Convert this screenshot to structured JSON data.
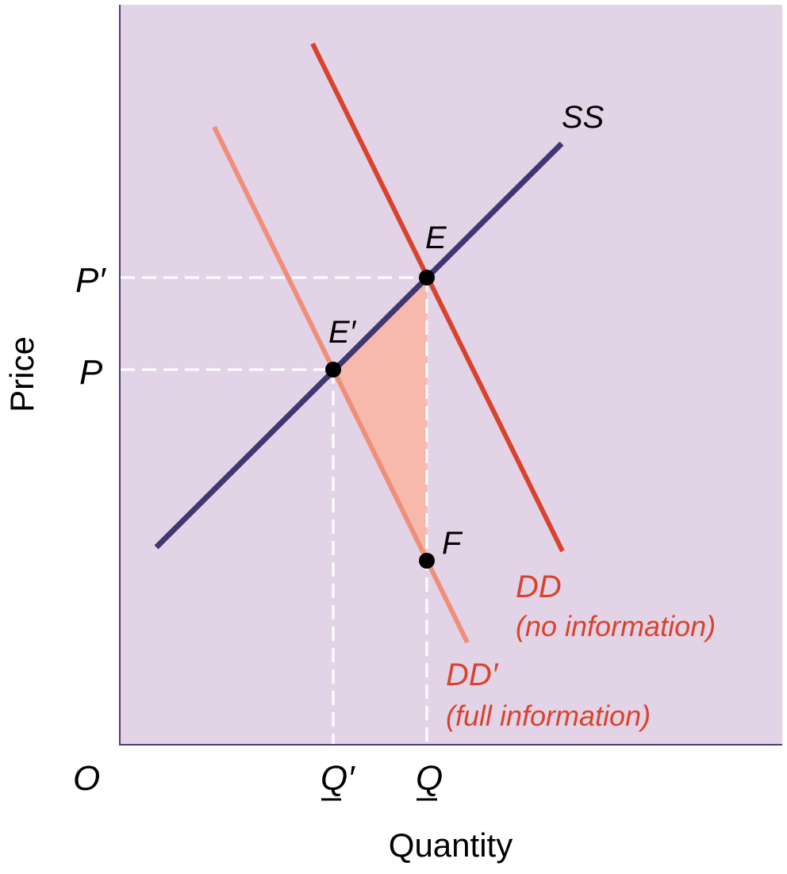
{
  "colors": {
    "panel_background": "#e3d3e6",
    "supply_line": "#3f3870",
    "demand_no_info": "#d9432e",
    "demand_full_info": "#ee8f7a",
    "welfare_loss_area": "#f6b9ac",
    "guide_lines": "#ffffff",
    "points": "#000000",
    "axis": "#4a3f7a"
  },
  "axes": {
    "y_label": "Price",
    "x_label": "Quantity",
    "origin_label": "O",
    "y_ticks": [
      "P′",
      "P"
    ],
    "x_ticks": [
      "Q′",
      "Q"
    ]
  },
  "curves": {
    "supply_label": "SS",
    "demand_no_info_label": "DD",
    "demand_no_info_note": "(no information)",
    "demand_full_info_label": "DD′",
    "demand_full_info_note": "(full information)"
  },
  "points": {
    "e": "E",
    "e_prime": "E′",
    "f": "F"
  }
}
